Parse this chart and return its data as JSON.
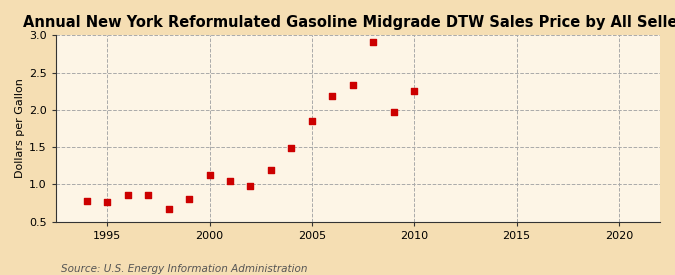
{
  "title": "Annual New York Reformulated Gasoline Midgrade DTW Sales Price by All Sellers",
  "ylabel": "Dollars per Gallon",
  "source": "Source: U.S. Energy Information Administration",
  "background_color": "#f5deb3",
  "plot_area_color": "#fdf5e6",
  "marker_color": "#cc0000",
  "grid_color": "#aaaaaa",
  "vline_color": "#aaaaaa",
  "spine_color": "#333333",
  "xlim": [
    1992.5,
    2022
  ],
  "ylim": [
    0.5,
    3.0
  ],
  "yticks": [
    0.5,
    1.0,
    1.5,
    2.0,
    2.5,
    3.0
  ],
  "xticks": [
    1995,
    2000,
    2005,
    2010,
    2015,
    2020
  ],
  "vlines": [
    1995,
    2000,
    2005,
    2010,
    2015,
    2020
  ],
  "years": [
    1994,
    1995,
    1996,
    1997,
    1998,
    1999,
    2000,
    2001,
    2002,
    2003,
    2004,
    2005,
    2006,
    2007,
    2008,
    2009,
    2010
  ],
  "values": [
    0.78,
    0.77,
    0.86,
    0.86,
    0.67,
    0.8,
    1.12,
    1.05,
    0.98,
    1.19,
    1.49,
    1.85,
    2.18,
    2.33,
    2.91,
    1.97,
    2.26
  ],
  "title_fontsize": 10.5,
  "ylabel_fontsize": 8,
  "tick_labelsize": 8,
  "source_fontsize": 7.5
}
